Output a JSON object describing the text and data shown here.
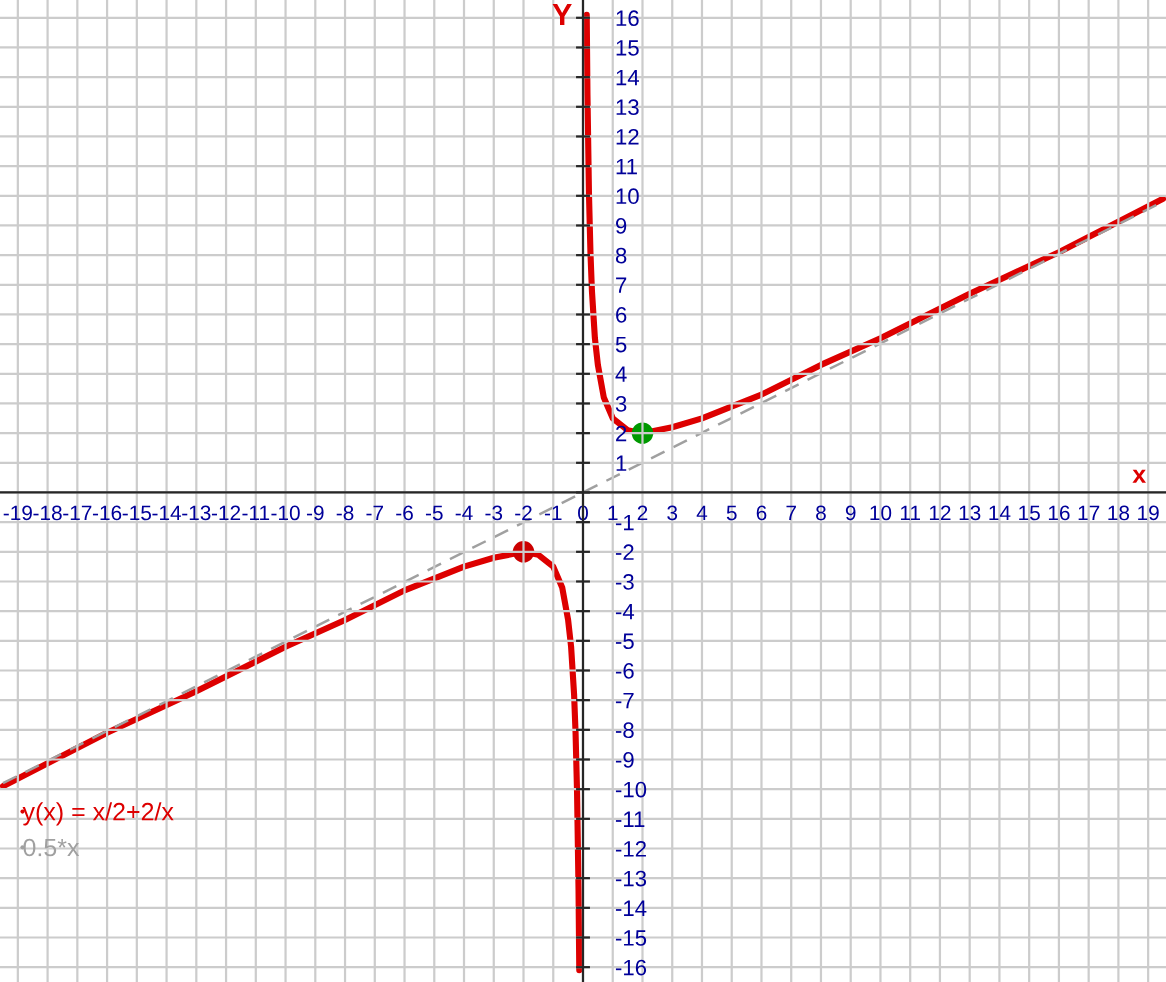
{
  "chart_data": {
    "type": "line",
    "xlabel": "x",
    "ylabel": "Y",
    "xlim": [
      -19.6,
      19.6
    ],
    "ylim": [
      -16.5,
      16.6
    ],
    "xticks": [
      -19,
      -18,
      -17,
      -16,
      -15,
      -14,
      -13,
      -12,
      -11,
      -10,
      -9,
      -8,
      -7,
      -6,
      -5,
      -4,
      -3,
      -2,
      -1,
      0,
      1,
      2,
      3,
      4,
      5,
      6,
      7,
      8,
      9,
      10,
      11,
      12,
      13,
      14,
      15,
      16,
      17,
      18,
      19
    ],
    "yticks": [
      -16,
      -15,
      -14,
      -13,
      -12,
      -11,
      -10,
      -9,
      -8,
      -7,
      -6,
      -5,
      -4,
      -3,
      -2,
      -1,
      {
        "value": 0,
        "label": null
      },
      1,
      2,
      3,
      4,
      5,
      6,
      7,
      8,
      9,
      10,
      11,
      12,
      13,
      14,
      15,
      16
    ],
    "grid": true,
    "legend": "bottom left",
    "series": [
      {
        "name": "y(x) = x/2+2/x",
        "color": "#dd0000",
        "line_style": "solid",
        "x": [
          -19.5,
          -16,
          -13,
          -10,
          -8,
          -6,
          -4,
          -3,
          -2,
          -1.5,
          -1,
          -0.7,
          -0.5,
          -0.4,
          -0.3,
          -0.25,
          -0.2,
          -0.15,
          -0.125,
          0,
          0.125,
          0.15,
          0.2,
          0.25,
          0.3,
          0.4,
          0.5,
          0.7,
          1,
          1.5,
          2,
          3,
          4,
          6,
          8,
          10,
          13,
          16,
          19.5
        ],
        "values": [
          -9.9,
          -8.1,
          -6.7,
          -5.2,
          -4.3,
          -3.3,
          -2.5,
          -2.2,
          -2,
          -2.1,
          -2.5,
          -3.2,
          -4.3,
          -5.2,
          -6.8,
          -8.1,
          -10.1,
          -13.4,
          -16.1,
          null,
          16.1,
          13.4,
          10.1,
          8.1,
          6.8,
          5.2,
          4.3,
          3.2,
          2.5,
          2.1,
          2,
          2.2,
          2.5,
          3.3,
          4.3,
          5.2,
          6.7,
          8.1,
          9.9
        ]
      },
      {
        "name": "0.5*x",
        "color": "#a0a0a0",
        "line_style": "dashed",
        "x": [
          -19.5,
          19.5
        ],
        "values": [
          -9.8,
          9.8
        ]
      },
      {
        "type": "scatter",
        "marker": "circle",
        "x": [
          -2,
          2
        ],
        "values": [
          -2,
          2
        ],
        "colors": [
          "#cc0000",
          "#009900"
        ]
      }
    ]
  }
}
